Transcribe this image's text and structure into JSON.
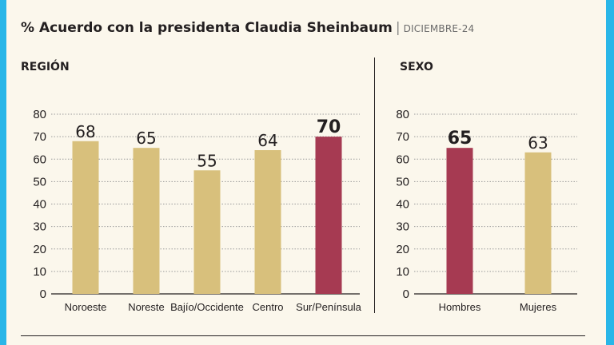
{
  "title": "% Acuerdo con la presidenta Claudia Sheinbaum",
  "date": "DICIEMBRE-24",
  "colors": {
    "default": "#d8c07c",
    "highlight": "#a63a52",
    "background": "#fbf7ec",
    "frame": "#29b6e8"
  },
  "chart_data": [
    {
      "type": "bar",
      "title": "REGIÓN",
      "categories": [
        "Noroeste",
        "Noreste",
        "Bajío/Occidente",
        "Centro",
        "Sur/Península"
      ],
      "values": [
        68,
        65,
        55,
        64,
        70
      ],
      "highlight": [
        false,
        false,
        false,
        false,
        true
      ],
      "ylim": [
        0,
        80
      ],
      "yticks": [
        0,
        10,
        20,
        30,
        40,
        50,
        60,
        70,
        80
      ],
      "grid": true
    },
    {
      "type": "bar",
      "title": "SEXO",
      "categories": [
        "Hombres",
        "Mujeres"
      ],
      "values": [
        65,
        63
      ],
      "highlight": [
        true,
        false
      ],
      "ylim": [
        0,
        80
      ],
      "yticks": [
        0,
        10,
        20,
        30,
        40,
        50,
        60,
        70,
        80
      ],
      "grid": true
    }
  ]
}
